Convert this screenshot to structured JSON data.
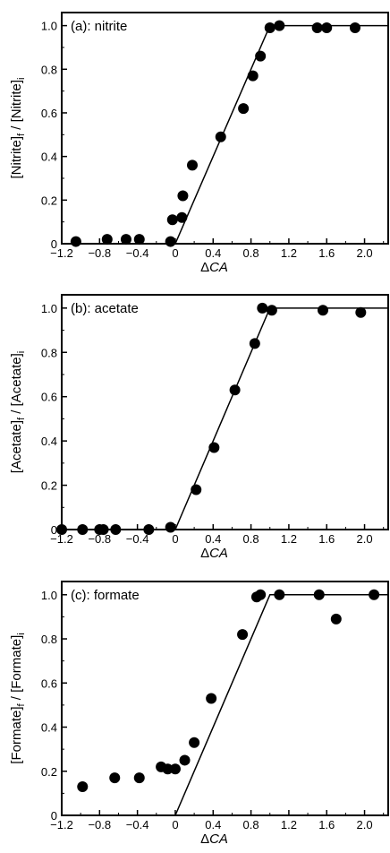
{
  "chart_data": [
    {
      "type": "scatter",
      "panel_label": "(a): nitrite",
      "xlabel": "ΔCA",
      "ylabel": "[Nitrite]_f / [Nitrite]_i",
      "ylabel_parts": {
        "a": "[Nitrite]",
        "sub_f": "f",
        "sep": " / [Nitrite]",
        "sub_i": "i"
      },
      "xlim": [
        -1.2,
        2.25
      ],
      "ylim": [
        0,
        1.06
      ],
      "xticks": [
        "-1.2",
        "-0.8",
        "-0.4",
        "0",
        "0.4",
        "0.8",
        "1.2",
        "1.6",
        "2.0"
      ],
      "xtick_values": [
        -1.2,
        -0.8,
        -0.4,
        0,
        0.4,
        0.8,
        1.2,
        1.6,
        2.0
      ],
      "yticks": [
        "0",
        "0.2",
        "0.4",
        "0.6",
        "0.8",
        "1.0"
      ],
      "ytick_values": [
        0,
        0.2,
        0.4,
        0.6,
        0.8,
        1.0
      ],
      "points": [
        {
          "x": -1.05,
          "y": 0.01
        },
        {
          "x": -0.72,
          "y": 0.02
        },
        {
          "x": -0.52,
          "y": 0.02
        },
        {
          "x": -0.38,
          "y": 0.02
        },
        {
          "x": -0.05,
          "y": 0.01
        },
        {
          "x": -0.03,
          "y": 0.11
        },
        {
          "x": 0.07,
          "y": 0.12
        },
        {
          "x": 0.08,
          "y": 0.22
        },
        {
          "x": 0.18,
          "y": 0.36
        },
        {
          "x": 0.48,
          "y": 0.49
        },
        {
          "x": 0.72,
          "y": 0.62
        },
        {
          "x": 0.82,
          "y": 0.77
        },
        {
          "x": 0.9,
          "y": 0.86
        },
        {
          "x": 1.0,
          "y": 0.99
        },
        {
          "x": 1.1,
          "y": 1.0
        },
        {
          "x": 1.5,
          "y": 0.99
        },
        {
          "x": 1.6,
          "y": 0.99
        },
        {
          "x": 1.9,
          "y": 0.99
        }
      ],
      "fit_line": [
        {
          "x": 0,
          "y": 0
        },
        {
          "x": 1.0,
          "y": 1.0
        },
        {
          "x": 2.25,
          "y": 1.0
        }
      ]
    },
    {
      "type": "scatter",
      "panel_label": "(b): acetate",
      "xlabel": "ΔCA",
      "ylabel": "[Acetate]_f / [Acetate]_i",
      "ylabel_parts": {
        "a": "[Acetate]",
        "sub_f": "f",
        "sep": " / [Acetate]",
        "sub_i": "i"
      },
      "xlim": [
        -1.2,
        2.25
      ],
      "ylim": [
        0,
        1.06
      ],
      "xticks": [
        "-1.2",
        "-0.8",
        "-0.4",
        "0",
        "0.4",
        "0.8",
        "1.2",
        "1.6",
        "2.0"
      ],
      "xtick_values": [
        -1.2,
        -0.8,
        -0.4,
        0,
        0.4,
        0.8,
        1.2,
        1.6,
        2.0
      ],
      "yticks": [
        "0",
        "0.2",
        "0.4",
        "0.6",
        "0.8",
        "1.0"
      ],
      "ytick_values": [
        0,
        0.2,
        0.4,
        0.6,
        0.8,
        1.0
      ],
      "points": [
        {
          "x": -1.2,
          "y": 0.0
        },
        {
          "x": -0.98,
          "y": 0.0
        },
        {
          "x": -0.8,
          "y": 0.0
        },
        {
          "x": -0.76,
          "y": 0.0
        },
        {
          "x": -0.63,
          "y": 0.0
        },
        {
          "x": -0.28,
          "y": 0.0
        },
        {
          "x": -0.05,
          "y": 0.01
        },
        {
          "x": 0.22,
          "y": 0.18
        },
        {
          "x": 0.41,
          "y": 0.37
        },
        {
          "x": 0.63,
          "y": 0.63
        },
        {
          "x": 0.84,
          "y": 0.84
        },
        {
          "x": 0.92,
          "y": 1.0
        },
        {
          "x": 1.02,
          "y": 0.99
        },
        {
          "x": 1.56,
          "y": 0.99
        },
        {
          "x": 1.96,
          "y": 0.98
        }
      ],
      "fit_line": [
        {
          "x": 0,
          "y": 0
        },
        {
          "x": 1.0,
          "y": 1.0
        },
        {
          "x": 2.25,
          "y": 1.0
        }
      ]
    },
    {
      "type": "scatter",
      "panel_label": "(c): formate",
      "xlabel": "ΔCA",
      "ylabel": "[Formate]_f / [Formate]_i",
      "ylabel_parts": {
        "a": "[Formate]",
        "sub_f": "f",
        "sep": " / [Formate]",
        "sub_i": "i"
      },
      "xlim": [
        -1.2,
        2.25
      ],
      "ylim": [
        0,
        1.06
      ],
      "xticks": [
        "-1.2",
        "-0.8",
        "-0.4",
        "0",
        "0.4",
        "0.8",
        "1.2",
        "1.6",
        "2.0"
      ],
      "xtick_values": [
        -1.2,
        -0.8,
        -0.4,
        0,
        0.4,
        0.8,
        1.2,
        1.6,
        2.0
      ],
      "yticks": [
        "0",
        "0.2",
        "0.4",
        "0.6",
        "0.8",
        "1.0"
      ],
      "ytick_values": [
        0,
        0.2,
        0.4,
        0.6,
        0.8,
        1.0
      ],
      "points": [
        {
          "x": -0.98,
          "y": 0.13
        },
        {
          "x": -0.64,
          "y": 0.17
        },
        {
          "x": -0.38,
          "y": 0.17
        },
        {
          "x": -0.15,
          "y": 0.22
        },
        {
          "x": -0.08,
          "y": 0.21
        },
        {
          "x": 0.0,
          "y": 0.21
        },
        {
          "x": 0.1,
          "y": 0.25
        },
        {
          "x": 0.2,
          "y": 0.33
        },
        {
          "x": 0.38,
          "y": 0.53
        },
        {
          "x": 0.71,
          "y": 0.82
        },
        {
          "x": 0.86,
          "y": 0.99
        },
        {
          "x": 0.9,
          "y": 1.0
        },
        {
          "x": 1.1,
          "y": 1.0
        },
        {
          "x": 1.52,
          "y": 1.0
        },
        {
          "x": 1.7,
          "y": 0.89
        },
        {
          "x": 2.1,
          "y": 1.0
        }
      ],
      "fit_line": [
        {
          "x": 0,
          "y": 0
        },
        {
          "x": 1.0,
          "y": 1.0
        },
        {
          "x": 2.25,
          "y": 1.0
        }
      ]
    }
  ]
}
